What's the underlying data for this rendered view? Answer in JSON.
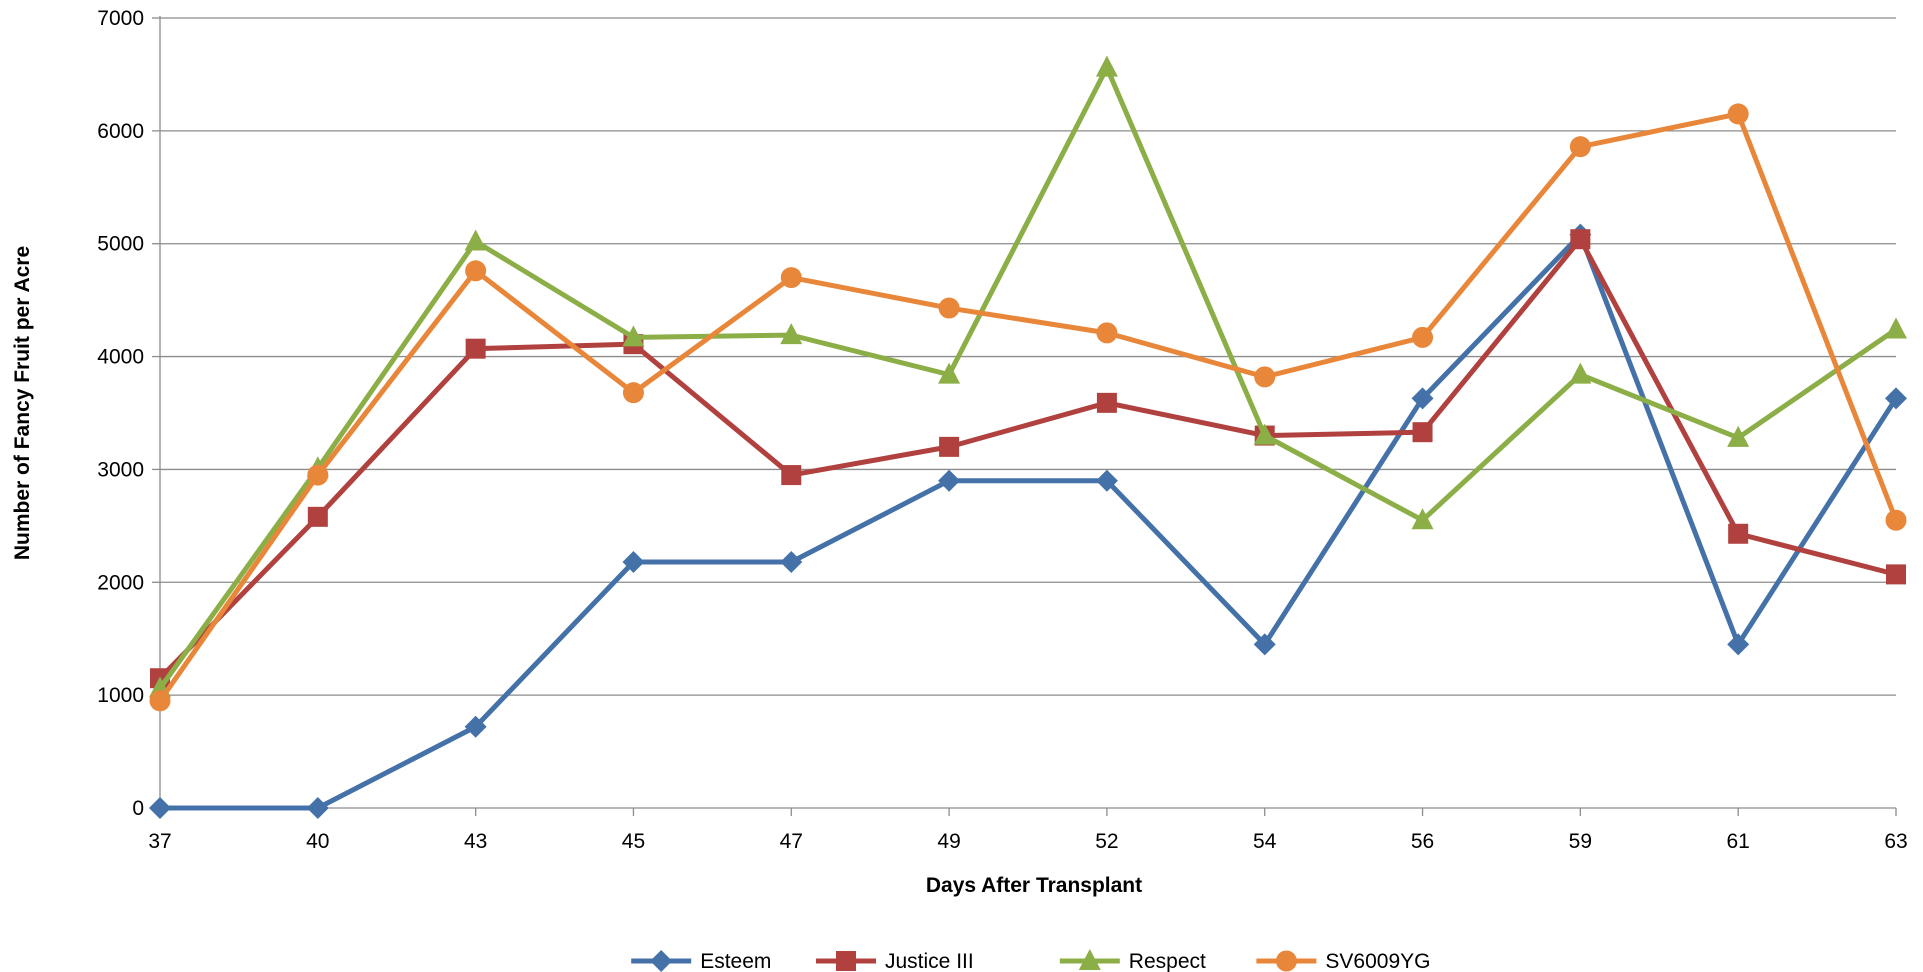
{
  "chart_data": {
    "type": "line",
    "title": "",
    "xlabel": "Days After Transplant",
    "ylabel": "Number of Fancy Fruit per Acre",
    "categories": [
      "37",
      "40",
      "43",
      "45",
      "47",
      "49",
      "52",
      "54",
      "56",
      "59",
      "61",
      "63"
    ],
    "ylim": [
      0,
      7000
    ],
    "yticks": [
      "0",
      "1000",
      "2000",
      "3000",
      "4000",
      "5000",
      "6000",
      "7000"
    ],
    "grid": "horizontal",
    "legend_position": "bottom",
    "series": [
      {
        "name": "Esteem",
        "color": "#4472A8",
        "marker": "diamond",
        "values": [
          0,
          0,
          720,
          2180,
          2180,
          2900,
          2900,
          1450,
          3630,
          5080,
          1450,
          3630
        ]
      },
      {
        "name": "Justice III",
        "color": "#B0413E",
        "marker": "square",
        "values": [
          1150,
          2580,
          4070,
          4110,
          2950,
          3200,
          3590,
          3300,
          3330,
          5040,
          2430,
          2070
        ]
      },
      {
        "name": "Respect",
        "color": "#8BAE46",
        "marker": "triangle",
        "values": [
          1060,
          3010,
          5020,
          4170,
          4190,
          3840,
          6560,
          3300,
          2550,
          3840,
          3280,
          4240
        ]
      },
      {
        "name": "SV6009YG",
        "color": "#E8863A",
        "marker": "circle",
        "values": [
          950,
          2950,
          4760,
          3680,
          4700,
          4430,
          4210,
          3820,
          4170,
          5860,
          6150,
          2550
        ]
      }
    ]
  }
}
